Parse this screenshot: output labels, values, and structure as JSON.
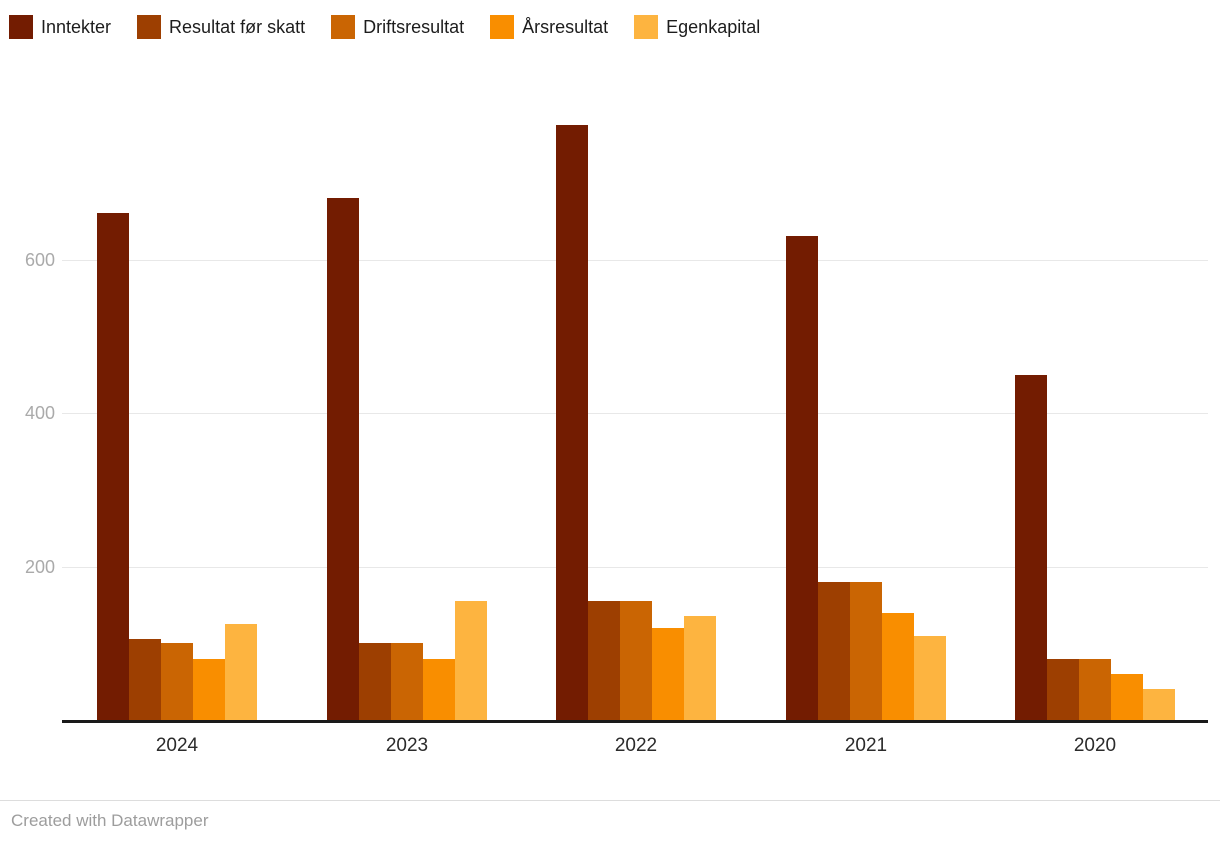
{
  "footer": {
    "credit": "Created with Datawrapper"
  },
  "chart_data": {
    "type": "bar",
    "grouped": true,
    "title": "",
    "xlabel": "",
    "ylabel": "",
    "categories": [
      "2024",
      "2023",
      "2022",
      "2021",
      "2020"
    ],
    "series": [
      {
        "name": "Inntekter",
        "color": "#731c01",
        "values": [
          660,
          680,
          775,
          630,
          450
        ]
      },
      {
        "name": "Resultat før skatt",
        "color": "#9d3f01",
        "values": [
          105,
          100,
          155,
          180,
          80
        ]
      },
      {
        "name": "Driftsresultat",
        "color": "#ca6503",
        "values": [
          100,
          100,
          155,
          180,
          80
        ]
      },
      {
        "name": "Årsresultat",
        "color": "#f98e00",
        "values": [
          80,
          80,
          120,
          140,
          60
        ]
      },
      {
        "name": "Egenkapital",
        "color": "#fdb440",
        "values": [
          125,
          155,
          135,
          110,
          40
        ]
      }
    ],
    "yticks": [
      200,
      400,
      600
    ],
    "ylim": [
      0,
      800
    ],
    "grid": true,
    "legend_position": "top-left",
    "colors": {
      "gridline": "#e8e8e8",
      "axis": "#1a1a1a",
      "ytick_text": "#aaaaaa",
      "xtick_text": "#2b2b2b",
      "legend_text": "#1d1d1d",
      "footer_text": "#9d9d9d"
    }
  }
}
